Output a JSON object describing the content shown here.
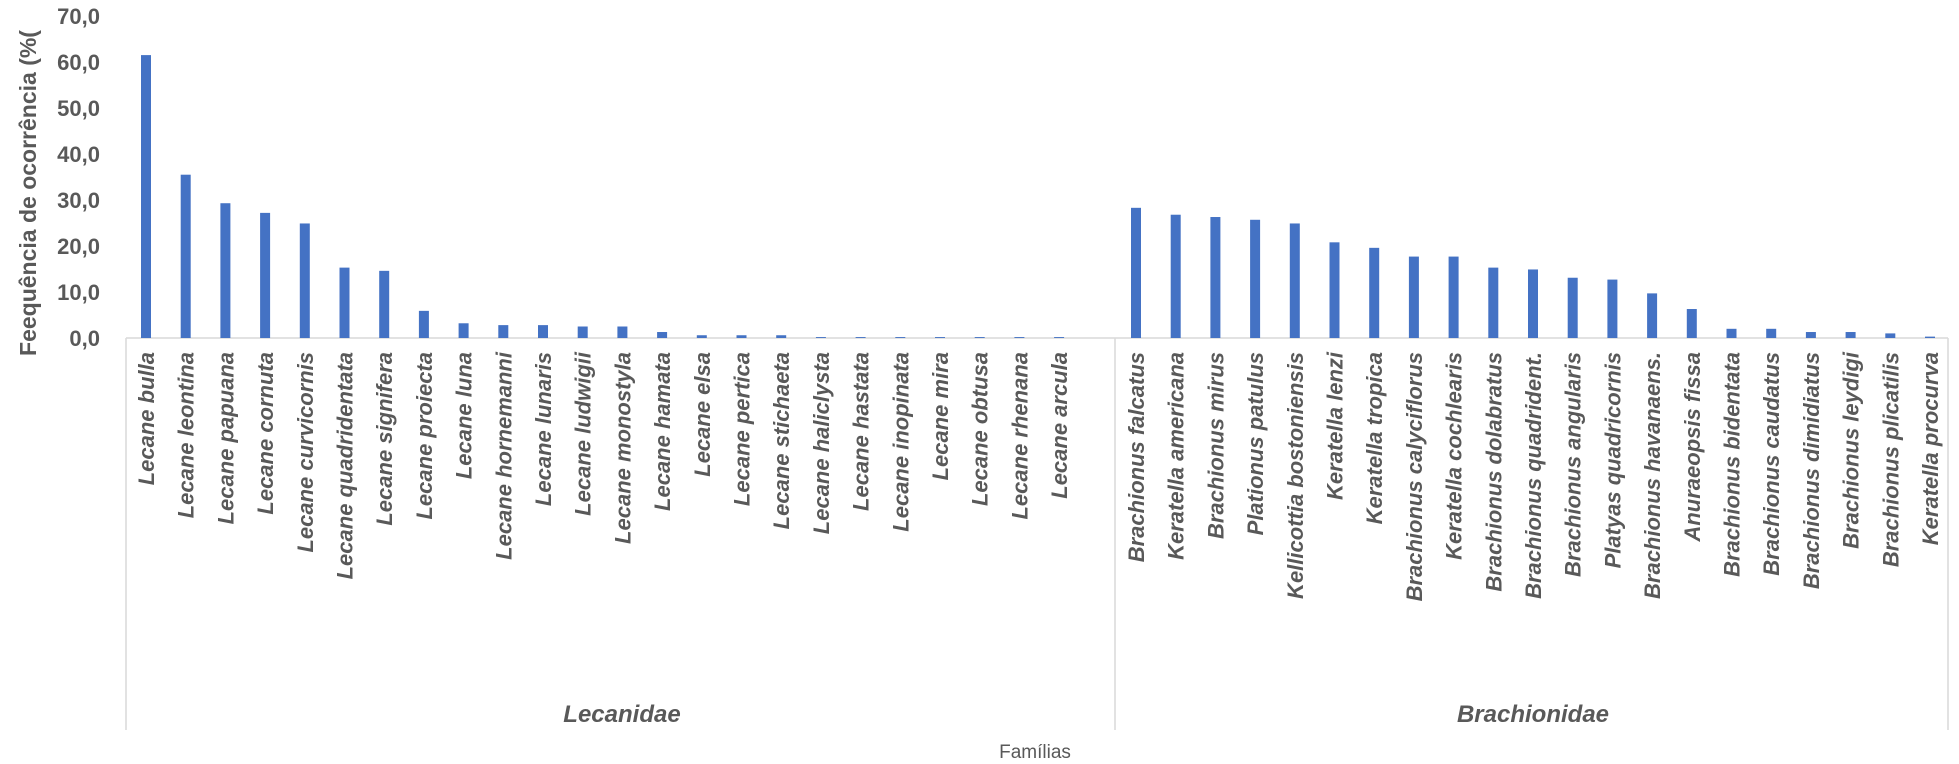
{
  "chart_data": {
    "type": "bar",
    "ylabel": "Feequência de ocorrência (%(",
    "xlabel": "Famílias",
    "ylim": [
      0,
      70
    ],
    "yticks": [
      "0,0",
      "10,0",
      "20,0",
      "30,0",
      "40,0",
      "50,0",
      "60,0",
      "70,0"
    ],
    "grid": false,
    "bar_color": "#4472C4",
    "groups": [
      {
        "name": "Lecanidae",
        "categories": [
          "Lecane bulla",
          "Lecane leontina",
          "Lecane papuana",
          "Lecane cornuta",
          "Lecane curvicornis",
          "Lecane quadridentata",
          "Lecane signifera",
          "Lecane proiecta",
          "Lecane luna",
          "Lecane hornemanni",
          "Lecane lunaris",
          "Lecane ludwigii",
          "Lecane monostyla",
          "Lecane hamata",
          "Lecane elsa",
          "Lecane pertica",
          "Lecane stichaeta",
          "Lecane haliclysta",
          "Lecane hastata",
          "Lecane inopinata",
          "Lecane mira",
          "Lecane obtusa",
          "Lecane rhenana",
          "Lecane arcula"
        ],
        "values": [
          61.5,
          35.5,
          29.3,
          27.2,
          24.9,
          15.3,
          14.6,
          5.9,
          3.2,
          2.8,
          2.8,
          2.5,
          2.5,
          1.3,
          0.6,
          0.6,
          0.6,
          0.2,
          0.2,
          0.2,
          0.2,
          0.2,
          0.2,
          0.2
        ]
      },
      {
        "name": "Brachionidae",
        "categories": [
          "Brachionus falcatus",
          "Keratella americana",
          "Brachionus mirus",
          "Plationus patulus",
          "Kellicottia bostoniensis",
          "Keratella lenzi",
          "Keratella tropica",
          "Brachionus calyciflorus",
          "Keratella cochlearis",
          "Brachionus dolabratus",
          "Brachionus quadrident.",
          "Brachionus angularis",
          "Platyas quadricornis",
          "Brachionus havanaens.",
          "Anuraeopsis fissa",
          "Brachionus bidentata",
          "Brachionus caudatus",
          "Brachionus dimidiatus",
          "Brachionus leydigi",
          "Brachionus plicatilis",
          "Keratella procurva"
        ],
        "values": [
          28.3,
          26.8,
          26.3,
          25.7,
          24.9,
          20.8,
          19.6,
          17.7,
          17.7,
          15.3,
          14.9,
          13.1,
          12.7,
          9.7,
          6.3,
          2.0,
          2.0,
          1.3,
          1.3,
          1.0,
          0.3
        ]
      }
    ]
  }
}
